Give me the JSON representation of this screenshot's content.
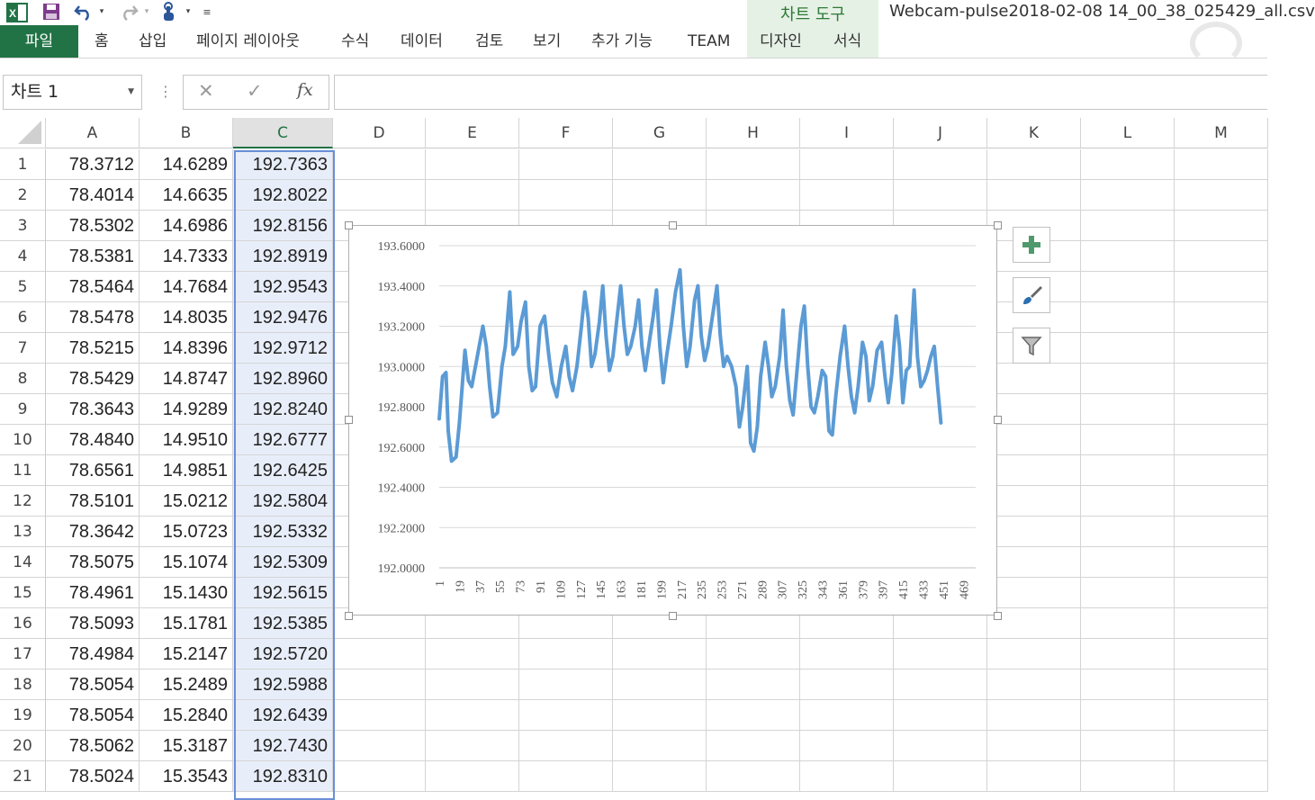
{
  "window": {
    "title": "Webcam-pulse2018-02-08 14_00_38_025429_all.csv"
  },
  "ribbon": {
    "context_tools_title": "차트 도구",
    "tabs": [
      "파일",
      "홈",
      "삽입",
      "페이지 레이아웃",
      "수식",
      "데이터",
      "검토",
      "보기",
      "추가 기능",
      "TEAM",
      "디자인",
      "서식"
    ]
  },
  "formula_bar": {
    "name_box": "차트 1",
    "fx_label": "fx",
    "formula": ""
  },
  "columns": [
    "A",
    "B",
    "C",
    "D",
    "E",
    "F",
    "G",
    "H",
    "I",
    "J",
    "K",
    "L",
    "M"
  ],
  "rows": [
    {
      "n": "1",
      "a": "78.3712",
      "b": "14.6289",
      "c": "192.7363"
    },
    {
      "n": "2",
      "a": "78.4014",
      "b": "14.6635",
      "c": "192.8022"
    },
    {
      "n": "3",
      "a": "78.5302",
      "b": "14.6986",
      "c": "192.8156"
    },
    {
      "n": "4",
      "a": "78.5381",
      "b": "14.7333",
      "c": "192.8919"
    },
    {
      "n": "5",
      "a": "78.5464",
      "b": "14.7684",
      "c": "192.9543"
    },
    {
      "n": "6",
      "a": "78.5478",
      "b": "14.8035",
      "c": "192.9476"
    },
    {
      "n": "7",
      "a": "78.5215",
      "b": "14.8396",
      "c": "192.9712"
    },
    {
      "n": "8",
      "a": "78.5429",
      "b": "14.8747",
      "c": "192.8960"
    },
    {
      "n": "9",
      "a": "78.3643",
      "b": "14.9289",
      "c": "192.8240"
    },
    {
      "n": "10",
      "a": "78.4840",
      "b": "14.9510",
      "c": "192.6777"
    },
    {
      "n": "11",
      "a": "78.6561",
      "b": "14.9851",
      "c": "192.6425"
    },
    {
      "n": "12",
      "a": "78.5101",
      "b": "15.0212",
      "c": "192.5804"
    },
    {
      "n": "13",
      "a": "78.3642",
      "b": "15.0723",
      "c": "192.5332"
    },
    {
      "n": "14",
      "a": "78.5075",
      "b": "15.1074",
      "c": "192.5309"
    },
    {
      "n": "15",
      "a": "78.4961",
      "b": "15.1430",
      "c": "192.5615"
    },
    {
      "n": "16",
      "a": "78.5093",
      "b": "15.1781",
      "c": "192.5385"
    },
    {
      "n": "17",
      "a": "78.4984",
      "b": "15.2147",
      "c": "192.5720"
    },
    {
      "n": "18",
      "a": "78.5054",
      "b": "15.2489",
      "c": "192.5988"
    },
    {
      "n": "19",
      "a": "78.5054",
      "b": "15.2840",
      "c": "192.6439"
    },
    {
      "n": "20",
      "a": "78.5062",
      "b": "15.3187",
      "c": "192.7430"
    },
    {
      "n": "21",
      "a": "78.5024",
      "b": "15.3543",
      "c": "192.8310"
    }
  ],
  "chart_data": {
    "type": "line",
    "color": "#5b9bd5",
    "ylim": [
      192.0,
      193.6
    ],
    "y_ticks": [
      "192.0000",
      "192.2000",
      "192.4000",
      "192.6000",
      "192.8000",
      "193.0000",
      "193.2000",
      "193.4000",
      "193.6000"
    ],
    "x_ticks": [
      "1",
      "19",
      "37",
      "55",
      "73",
      "91",
      "109",
      "127",
      "145",
      "163",
      "181",
      "199",
      "217",
      "235",
      "253",
      "271",
      "289",
      "307",
      "325",
      "343",
      "361",
      "379",
      "397",
      "415",
      "433",
      "451",
      "469"
    ],
    "x_range": [
      1,
      480
    ],
    "grid": true,
    "legend": "none",
    "series_keypoints": [
      [
        1,
        192.74
      ],
      [
        4,
        192.95
      ],
      [
        7,
        192.97
      ],
      [
        9,
        192.68
      ],
      [
        12,
        192.53
      ],
      [
        16,
        192.55
      ],
      [
        19,
        192.72
      ],
      [
        24,
        193.08
      ],
      [
        27,
        192.93
      ],
      [
        30,
        192.9
      ],
      [
        35,
        193.05
      ],
      [
        40,
        193.2
      ],
      [
        43,
        193.1
      ],
      [
        46,
        192.9
      ],
      [
        49,
        192.75
      ],
      [
        53,
        192.77
      ],
      [
        57,
        193.0
      ],
      [
        60,
        193.1
      ],
      [
        64,
        193.37
      ],
      [
        67,
        193.06
      ],
      [
        71,
        193.1
      ],
      [
        74,
        193.22
      ],
      [
        78,
        193.32
      ],
      [
        81,
        193.0
      ],
      [
        84,
        192.88
      ],
      [
        87,
        192.9
      ],
      [
        91,
        193.2
      ],
      [
        95,
        193.25
      ],
      [
        99,
        193.05
      ],
      [
        102,
        192.92
      ],
      [
        106,
        192.85
      ],
      [
        110,
        193.0
      ],
      [
        114,
        193.1
      ],
      [
        117,
        192.95
      ],
      [
        120,
        192.88
      ],
      [
        124,
        193.0
      ],
      [
        128,
        193.2
      ],
      [
        131,
        193.37
      ],
      [
        134,
        193.24
      ],
      [
        137,
        193.0
      ],
      [
        140,
        193.06
      ],
      [
        144,
        193.22
      ],
      [
        147,
        193.4
      ],
      [
        150,
        193.15
      ],
      [
        153,
        192.98
      ],
      [
        156,
        193.05
      ],
      [
        160,
        193.25
      ],
      [
        163,
        193.4
      ],
      [
        166,
        193.2
      ],
      [
        169,
        193.06
      ],
      [
        172,
        193.1
      ],
      [
        176,
        193.2
      ],
      [
        179,
        193.33
      ],
      [
        182,
        193.1
      ],
      [
        185,
        192.98
      ],
      [
        188,
        193.1
      ],
      [
        192,
        193.25
      ],
      [
        195,
        193.38
      ],
      [
        198,
        193.1
      ],
      [
        201,
        192.92
      ],
      [
        204,
        193.05
      ],
      [
        208,
        193.2
      ],
      [
        212,
        193.37
      ],
      [
        216,
        193.48
      ],
      [
        219,
        193.2
      ],
      [
        222,
        193.0
      ],
      [
        225,
        193.1
      ],
      [
        229,
        193.33
      ],
      [
        232,
        193.4
      ],
      [
        235,
        193.15
      ],
      [
        238,
        193.03
      ],
      [
        241,
        193.1
      ],
      [
        245,
        193.25
      ],
      [
        249,
        193.4
      ],
      [
        252,
        193.15
      ],
      [
        255,
        193.0
      ],
      [
        258,
        193.05
      ],
      [
        262,
        193.0
      ],
      [
        266,
        192.9
      ],
      [
        269,
        192.7
      ],
      [
        272,
        192.8
      ],
      [
        276,
        193.0
      ],
      [
        279,
        192.62
      ],
      [
        282,
        192.58
      ],
      [
        285,
        192.7
      ],
      [
        288,
        192.95
      ],
      [
        292,
        193.12
      ],
      [
        295,
        193.0
      ],
      [
        298,
        192.85
      ],
      [
        301,
        192.9
      ],
      [
        305,
        193.05
      ],
      [
        308,
        193.28
      ],
      [
        311,
        193.0
      ],
      [
        314,
        192.83
      ],
      [
        317,
        192.76
      ],
      [
        320,
        192.95
      ],
      [
        324,
        193.2
      ],
      [
        327,
        193.3
      ],
      [
        330,
        193.0
      ],
      [
        333,
        192.8
      ],
      [
        336,
        192.77
      ],
      [
        339,
        192.85
      ],
      [
        343,
        192.98
      ],
      [
        346,
        192.95
      ],
      [
        349,
        192.68
      ],
      [
        352,
        192.66
      ],
      [
        355,
        192.85
      ],
      [
        359,
        193.05
      ],
      [
        363,
        193.2
      ],
      [
        366,
        193.0
      ],
      [
        369,
        192.85
      ],
      [
        372,
        192.77
      ],
      [
        375,
        192.9
      ],
      [
        379,
        193.12
      ],
      [
        382,
        193.05
      ],
      [
        385,
        192.83
      ],
      [
        388,
        192.9
      ],
      [
        392,
        193.08
      ],
      [
        396,
        193.12
      ],
      [
        399,
        192.95
      ],
      [
        402,
        192.82
      ],
      [
        405,
        192.96
      ],
      [
        409,
        193.25
      ],
      [
        412,
        193.1
      ],
      [
        415,
        192.82
      ],
      [
        418,
        192.98
      ],
      [
        421,
        193.0
      ],
      [
        425,
        193.38
      ],
      [
        428,
        193.05
      ],
      [
        431,
        192.9
      ],
      [
        434,
        192.93
      ],
      [
        437,
        192.98
      ],
      [
        440,
        193.05
      ],
      [
        443,
        193.1
      ],
      [
        446,
        192.9
      ],
      [
        449,
        192.72
      ]
    ]
  }
}
